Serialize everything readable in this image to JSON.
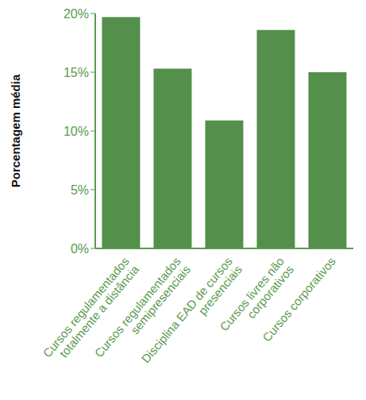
{
  "chart_data": {
    "type": "bar",
    "ylabel": "Porcentagem média",
    "categories": [
      "Cursos regulamentados totalmente a distância",
      "Cursos regulamentados semipresenciais",
      "Disciplina EAD de cursos presenciais",
      "Cursos livres não corporativos",
      "Cursos corporativos"
    ],
    "values": [
      19.7,
      15.3,
      10.9,
      18.6,
      15.0
    ],
    "color": "#548f4c",
    "ylim": [
      0,
      20
    ],
    "yticks": [
      {
        "value": 0,
        "label": "0%"
      },
      {
        "value": 5,
        "label": "5%"
      },
      {
        "value": 10,
        "label": "10%"
      },
      {
        "value": 15,
        "label": "15%"
      },
      {
        "value": 20,
        "label": "20%"
      }
    ],
    "grid": false
  }
}
